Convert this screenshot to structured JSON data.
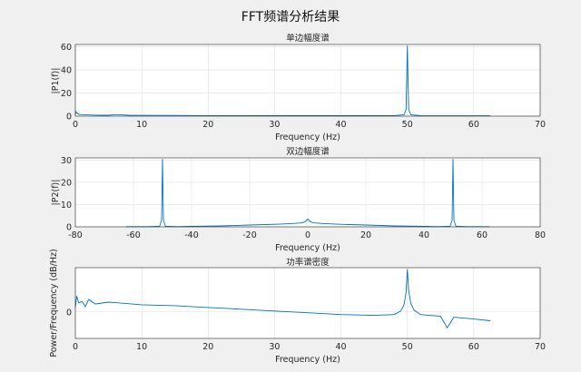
{
  "figure_title": "FFT频谱分析结果",
  "chart_data": [
    {
      "type": "line",
      "title": "单边幅度谱",
      "xlabel": "Frequency (Hz)",
      "ylabel": "|P1(f)|",
      "xlim": [
        0,
        70
      ],
      "ylim": [
        0,
        62
      ],
      "xticks": [
        0,
        10,
        20,
        30,
        40,
        50,
        60,
        70
      ],
      "yticks": [
        0,
        20,
        40,
        60
      ],
      "grid": true,
      "series": [
        {
          "color": "#0072bd",
          "x": [
            0,
            0.1,
            0.3,
            0.5,
            1,
            2,
            3,
            4,
            5,
            6,
            7,
            8,
            10,
            12,
            15,
            20,
            25,
            30,
            35,
            40,
            44,
            48,
            49.5,
            49.8,
            50,
            50.2,
            50.5,
            52,
            55,
            60,
            62.5
          ],
          "y": [
            1.2,
            3.8,
            2.4,
            1.6,
            1.3,
            1.1,
            0.9,
            0.8,
            0.8,
            1.3,
            1.1,
            0.8,
            0.7,
            0.6,
            0.6,
            0.5,
            0.5,
            0.4,
            0.4,
            0.4,
            0.4,
            0.5,
            1.2,
            6,
            61,
            6,
            1.2,
            0.4,
            0.3,
            0.3,
            0.3
          ]
        }
      ]
    },
    {
      "type": "line",
      "title": "双边幅度谱",
      "xlabel": "Frequency (Hz)",
      "ylabel": "|P2(f)|",
      "xlim": [
        -80,
        80
      ],
      "ylim": [
        0,
        31
      ],
      "xticks": [
        -80,
        -60,
        -40,
        -20,
        0,
        20,
        40,
        60,
        80
      ],
      "yticks": [
        0,
        10,
        20,
        30
      ],
      "grid": true,
      "series": [
        {
          "color": "#0072bd",
          "x": [
            -62.5,
            -55,
            -51,
            -50.3,
            -50,
            -49.7,
            -49,
            -45,
            -40,
            -30,
            -20,
            -10,
            -5,
            -2,
            -1,
            0,
            1,
            2,
            5,
            10,
            20,
            30,
            40,
            45,
            49,
            49.7,
            50,
            50.3,
            51,
            55,
            62.5
          ],
          "y": [
            0.1,
            0.1,
            0.3,
            3,
            30.5,
            3,
            0.3,
            0.1,
            0.2,
            0.4,
            0.8,
            1.2,
            1.5,
            1.8,
            2.2,
            3.5,
            2.2,
            1.8,
            1.5,
            1.2,
            0.8,
            0.4,
            0.2,
            0.1,
            0.3,
            3,
            30.5,
            3,
            0.3,
            0.1,
            0.1
          ]
        }
      ]
    },
    {
      "type": "line",
      "title": "功率谱密度",
      "xlabel": "Frequency (Hz)",
      "ylabel": "Power/Frequency (dB/Hz)",
      "xlim": [
        0,
        70
      ],
      "ylim": [
        -30,
        50
      ],
      "xticks": [
        0,
        10,
        20,
        30,
        40,
        50,
        60,
        70
      ],
      "yticks": [
        0
      ],
      "grid": true,
      "series": [
        {
          "color": "#0072bd",
          "x": [
            0,
            0.2,
            0.5,
            1,
            1.5,
            2,
            3,
            5,
            10,
            15,
            20,
            25,
            30,
            35,
            40,
            45,
            48,
            49,
            49.5,
            49.8,
            50,
            50.2,
            50.5,
            51,
            52,
            55,
            56,
            57,
            60,
            62.5
          ],
          "y": [
            5,
            18,
            10,
            12,
            6,
            14,
            9,
            11,
            8,
            7,
            5,
            3,
            1,
            -1,
            -3,
            -4,
            -3,
            1,
            8,
            22,
            48,
            24,
            10,
            2,
            -3,
            -5,
            -18,
            -6,
            -8,
            -10
          ]
        }
      ]
    }
  ]
}
